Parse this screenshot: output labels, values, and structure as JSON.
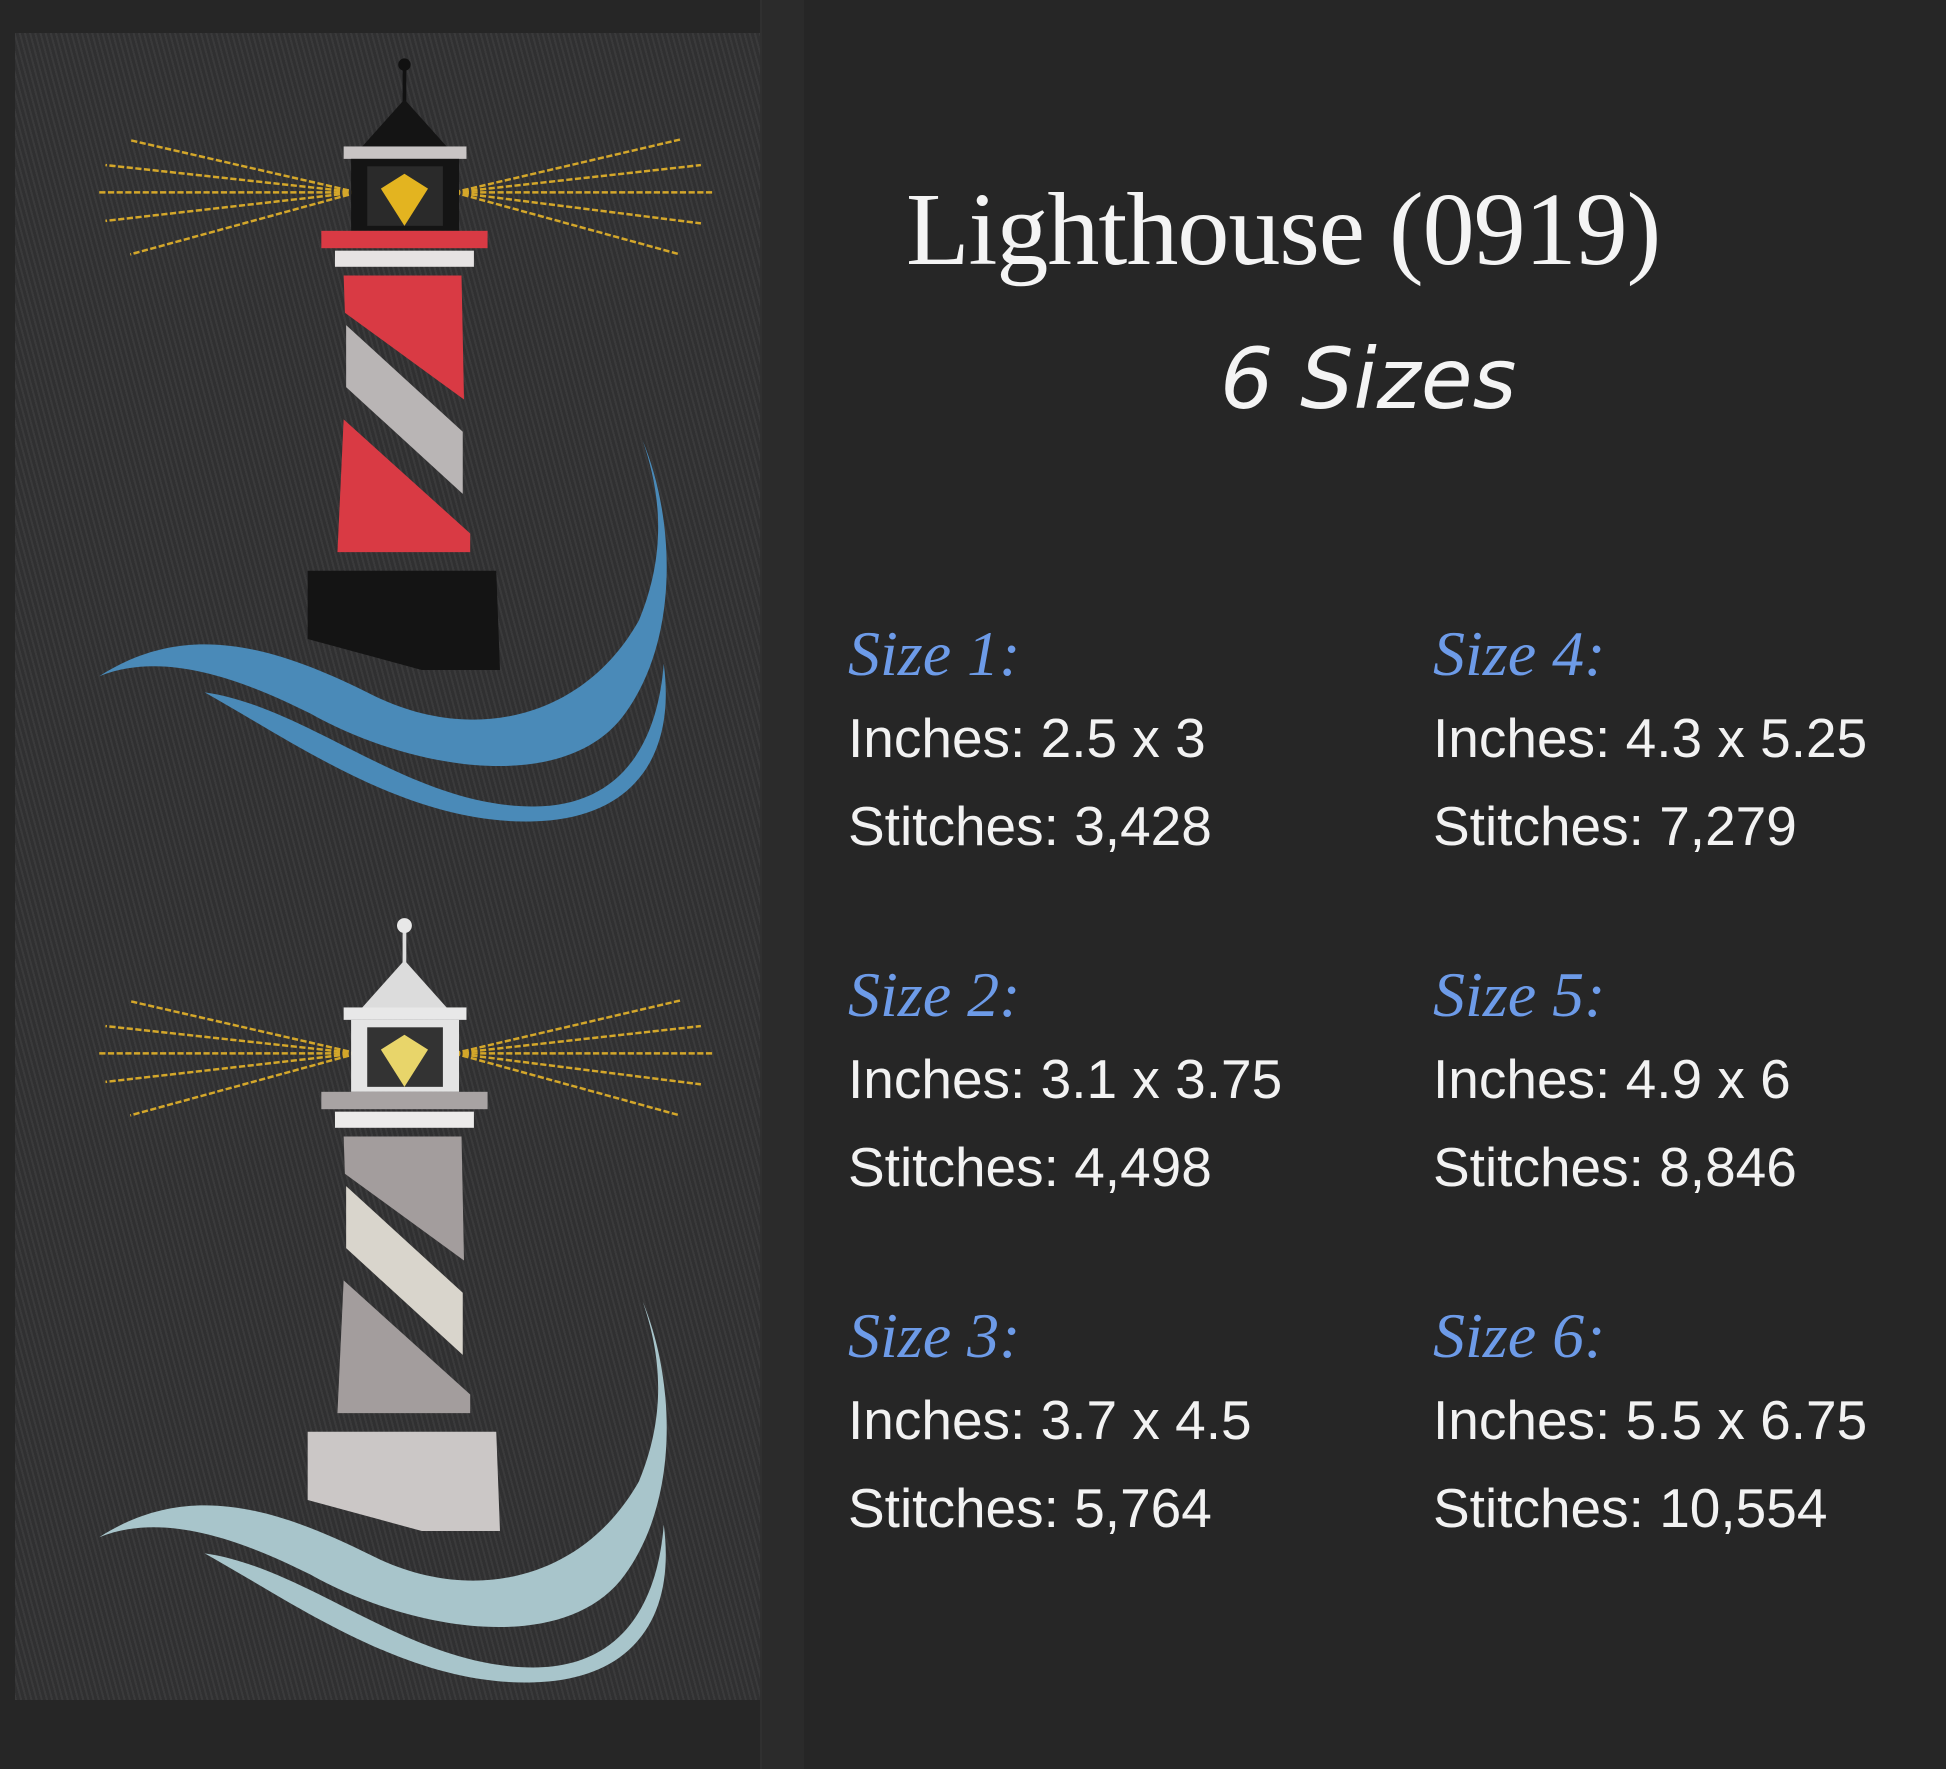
{
  "title": "Lighthouse (0919)",
  "subtitle": "6 Sizes",
  "colors": {
    "background": "#262626",
    "heading_blue": "#6d9be8",
    "text": "#f2f2f2"
  },
  "sizes": [
    {
      "label": "Size 1:",
      "inches": "Inches: 2.5 x 3",
      "stitches": "Stitches: 3,428"
    },
    {
      "label": "Size 2:",
      "inches": "Inches: 3.1 x 3.75",
      "stitches": "Stitches: 4,498"
    },
    {
      "label": "Size 3:",
      "inches": "Inches: 3.7 x 4.5",
      "stitches": "Stitches: 5,764"
    },
    {
      "label": "Size 4:",
      "inches": "Inches: 4.3 x 5.25",
      "stitches": "Stitches: 7,279"
    },
    {
      "label": "Size 5:",
      "inches": "Inches: 4.9 x 6",
      "stitches": "Stitches: 8,846"
    },
    {
      "label": "Size 6:",
      "inches": "Inches: 5.5 x 6.75",
      "stitches": "Stitches: 10,554"
    }
  ]
}
